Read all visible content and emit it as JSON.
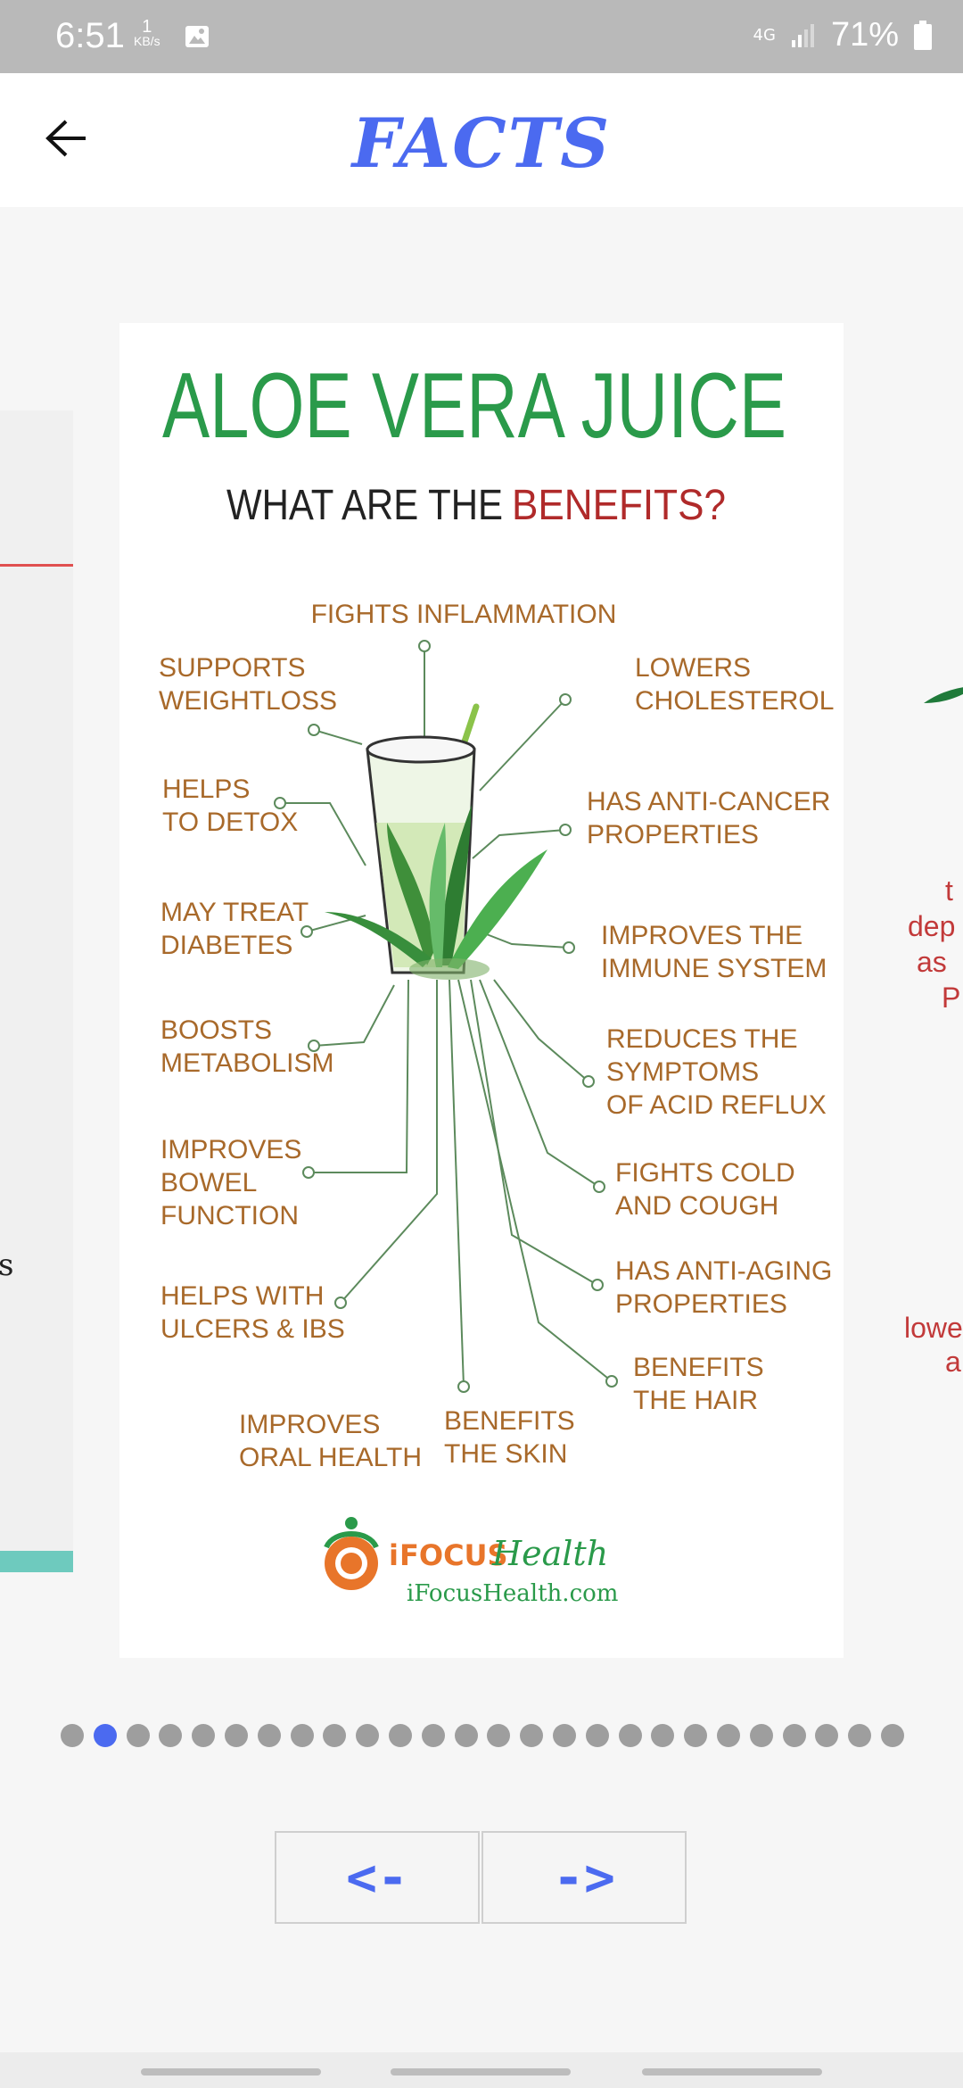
{
  "status": {
    "time": "6:51",
    "kbs_value": "1",
    "kbs_unit": "KB/s",
    "network": "4G",
    "battery": "71%"
  },
  "appbar": {
    "title": "FACTS"
  },
  "peek": {
    "left_char": "s",
    "right_lines": [
      "t",
      "dep",
      "as",
      "P",
      "lowe",
      "a"
    ]
  },
  "card": {
    "title": "ALOE VERA JUICE",
    "subtitle_prefix": "WHAT ARE THE ",
    "subtitle_highlight": "BENEFITS?",
    "benefits_top": "FIGHTS INFLAMMATION",
    "benefits_left": [
      [
        "SUPPORTS",
        "WEIGHTLOSS"
      ],
      [
        "HELPS",
        "TO DETOX"
      ],
      [
        "MAY TREAT",
        "DIABETES"
      ],
      [
        "BOOSTS",
        "METABOLISM"
      ],
      [
        "IMPROVES",
        "BOWEL",
        "FUNCTION"
      ],
      [
        "HELPS WITH",
        "ULCERS & IBS"
      ]
    ],
    "benefits_right": [
      [
        "LOWERS",
        "CHOLESTEROL"
      ],
      [
        "HAS ANTI-CANCER",
        "PROPERTIES"
      ],
      [
        "IMPROVES THE",
        "IMMUNE SYSTEM"
      ],
      [
        "REDUCES THE",
        "SYMPTOMS",
        "OF ACID REFLUX"
      ],
      [
        "FIGHTS COLD",
        "AND COUGH"
      ],
      [
        "HAS ANTI-AGING",
        "PROPERTIES"
      ],
      [
        "BENEFITS",
        "THE HAIR"
      ]
    ],
    "benefits_bottom": [
      [
        "IMPROVES",
        "ORAL HEALTH"
      ],
      [
        "BENEFITS",
        "THE SKIN"
      ]
    ],
    "brand_i": "i",
    "brand_focus": "FOCUS",
    "brand_health": "Health",
    "brand_url": "iFocusHealth.com"
  },
  "pager": {
    "count": 26,
    "active_index": 1
  },
  "nav": {
    "prev_label": "<-",
    "next_label": "->"
  },
  "colors": {
    "accent": "#4b6af0",
    "green": "#2a9a4a",
    "brown": "#a8692a",
    "red": "#b02a2a"
  }
}
